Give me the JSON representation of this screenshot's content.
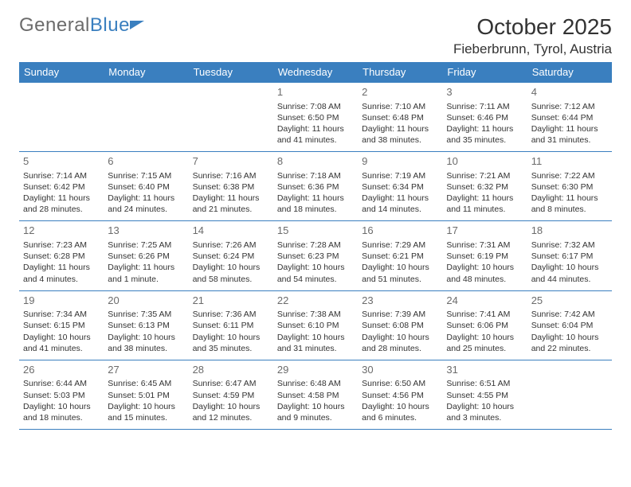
{
  "logo": {
    "text1": "General",
    "text2": "Blue"
  },
  "title": "October 2025",
  "location": "Fieberbrunn, Tyrol, Austria",
  "colors": {
    "brand": "#3a7fbf",
    "text": "#333333",
    "muted": "#6b6b6b",
    "bg": "#ffffff"
  },
  "dayNames": [
    "Sunday",
    "Monday",
    "Tuesday",
    "Wednesday",
    "Thursday",
    "Friday",
    "Saturday"
  ],
  "weeks": [
    [
      null,
      null,
      null,
      {
        "n": "1",
        "sr": "Sunrise: 7:08 AM",
        "ss": "Sunset: 6:50 PM",
        "dl": "Daylight: 11 hours and 41 minutes."
      },
      {
        "n": "2",
        "sr": "Sunrise: 7:10 AM",
        "ss": "Sunset: 6:48 PM",
        "dl": "Daylight: 11 hours and 38 minutes."
      },
      {
        "n": "3",
        "sr": "Sunrise: 7:11 AM",
        "ss": "Sunset: 6:46 PM",
        "dl": "Daylight: 11 hours and 35 minutes."
      },
      {
        "n": "4",
        "sr": "Sunrise: 7:12 AM",
        "ss": "Sunset: 6:44 PM",
        "dl": "Daylight: 11 hours and 31 minutes."
      }
    ],
    [
      {
        "n": "5",
        "sr": "Sunrise: 7:14 AM",
        "ss": "Sunset: 6:42 PM",
        "dl": "Daylight: 11 hours and 28 minutes."
      },
      {
        "n": "6",
        "sr": "Sunrise: 7:15 AM",
        "ss": "Sunset: 6:40 PM",
        "dl": "Daylight: 11 hours and 24 minutes."
      },
      {
        "n": "7",
        "sr": "Sunrise: 7:16 AM",
        "ss": "Sunset: 6:38 PM",
        "dl": "Daylight: 11 hours and 21 minutes."
      },
      {
        "n": "8",
        "sr": "Sunrise: 7:18 AM",
        "ss": "Sunset: 6:36 PM",
        "dl": "Daylight: 11 hours and 18 minutes."
      },
      {
        "n": "9",
        "sr": "Sunrise: 7:19 AM",
        "ss": "Sunset: 6:34 PM",
        "dl": "Daylight: 11 hours and 14 minutes."
      },
      {
        "n": "10",
        "sr": "Sunrise: 7:21 AM",
        "ss": "Sunset: 6:32 PM",
        "dl": "Daylight: 11 hours and 11 minutes."
      },
      {
        "n": "11",
        "sr": "Sunrise: 7:22 AM",
        "ss": "Sunset: 6:30 PM",
        "dl": "Daylight: 11 hours and 8 minutes."
      }
    ],
    [
      {
        "n": "12",
        "sr": "Sunrise: 7:23 AM",
        "ss": "Sunset: 6:28 PM",
        "dl": "Daylight: 11 hours and 4 minutes."
      },
      {
        "n": "13",
        "sr": "Sunrise: 7:25 AM",
        "ss": "Sunset: 6:26 PM",
        "dl": "Daylight: 11 hours and 1 minute."
      },
      {
        "n": "14",
        "sr": "Sunrise: 7:26 AM",
        "ss": "Sunset: 6:24 PM",
        "dl": "Daylight: 10 hours and 58 minutes."
      },
      {
        "n": "15",
        "sr": "Sunrise: 7:28 AM",
        "ss": "Sunset: 6:23 PM",
        "dl": "Daylight: 10 hours and 54 minutes."
      },
      {
        "n": "16",
        "sr": "Sunrise: 7:29 AM",
        "ss": "Sunset: 6:21 PM",
        "dl": "Daylight: 10 hours and 51 minutes."
      },
      {
        "n": "17",
        "sr": "Sunrise: 7:31 AM",
        "ss": "Sunset: 6:19 PM",
        "dl": "Daylight: 10 hours and 48 minutes."
      },
      {
        "n": "18",
        "sr": "Sunrise: 7:32 AM",
        "ss": "Sunset: 6:17 PM",
        "dl": "Daylight: 10 hours and 44 minutes."
      }
    ],
    [
      {
        "n": "19",
        "sr": "Sunrise: 7:34 AM",
        "ss": "Sunset: 6:15 PM",
        "dl": "Daylight: 10 hours and 41 minutes."
      },
      {
        "n": "20",
        "sr": "Sunrise: 7:35 AM",
        "ss": "Sunset: 6:13 PM",
        "dl": "Daylight: 10 hours and 38 minutes."
      },
      {
        "n": "21",
        "sr": "Sunrise: 7:36 AM",
        "ss": "Sunset: 6:11 PM",
        "dl": "Daylight: 10 hours and 35 minutes."
      },
      {
        "n": "22",
        "sr": "Sunrise: 7:38 AM",
        "ss": "Sunset: 6:10 PM",
        "dl": "Daylight: 10 hours and 31 minutes."
      },
      {
        "n": "23",
        "sr": "Sunrise: 7:39 AM",
        "ss": "Sunset: 6:08 PM",
        "dl": "Daylight: 10 hours and 28 minutes."
      },
      {
        "n": "24",
        "sr": "Sunrise: 7:41 AM",
        "ss": "Sunset: 6:06 PM",
        "dl": "Daylight: 10 hours and 25 minutes."
      },
      {
        "n": "25",
        "sr": "Sunrise: 7:42 AM",
        "ss": "Sunset: 6:04 PM",
        "dl": "Daylight: 10 hours and 22 minutes."
      }
    ],
    [
      {
        "n": "26",
        "sr": "Sunrise: 6:44 AM",
        "ss": "Sunset: 5:03 PM",
        "dl": "Daylight: 10 hours and 18 minutes."
      },
      {
        "n": "27",
        "sr": "Sunrise: 6:45 AM",
        "ss": "Sunset: 5:01 PM",
        "dl": "Daylight: 10 hours and 15 minutes."
      },
      {
        "n": "28",
        "sr": "Sunrise: 6:47 AM",
        "ss": "Sunset: 4:59 PM",
        "dl": "Daylight: 10 hours and 12 minutes."
      },
      {
        "n": "29",
        "sr": "Sunrise: 6:48 AM",
        "ss": "Sunset: 4:58 PM",
        "dl": "Daylight: 10 hours and 9 minutes."
      },
      {
        "n": "30",
        "sr": "Sunrise: 6:50 AM",
        "ss": "Sunset: 4:56 PM",
        "dl": "Daylight: 10 hours and 6 minutes."
      },
      {
        "n": "31",
        "sr": "Sunrise: 6:51 AM",
        "ss": "Sunset: 4:55 PM",
        "dl": "Daylight: 10 hours and 3 minutes."
      },
      null
    ]
  ]
}
